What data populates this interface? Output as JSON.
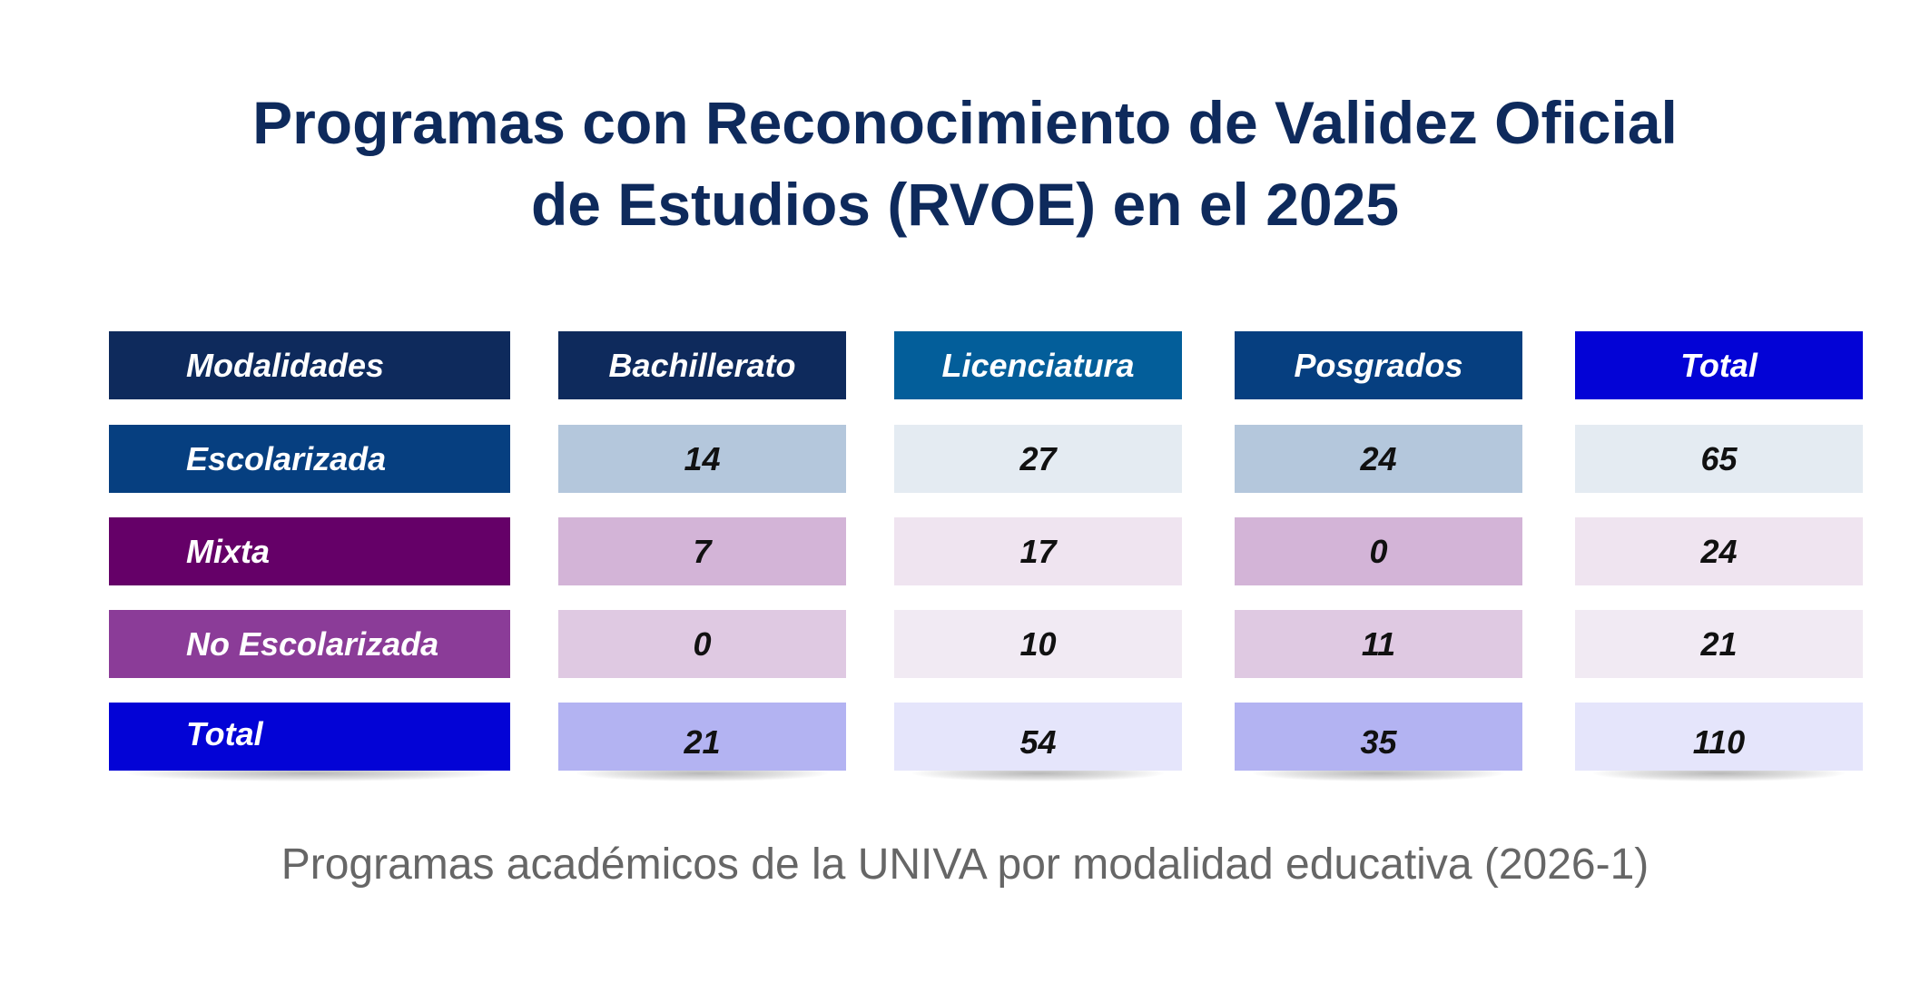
{
  "title": {
    "line1": "Programas con Reconocimiento de Validez Oficial",
    "line2": "de Estudios (RVOE) en el 2025"
  },
  "caption": "Programas académicos de la UNIVA por modalidad educativa (2026-1)",
  "colors": {
    "title": "#0e2a5c",
    "header_modalidades": "#0e2a5c",
    "header_bachillerato": "#0e2a5c",
    "header_licenciatura": "#035e9a",
    "header_posgrados": "#063f80",
    "header_total": "#0303d6",
    "row_escolarizada": "#063f80",
    "row_mixta": "#650068",
    "row_no_escolarizada": "#8b3c98",
    "row_total": "#0303d6"
  },
  "chart_data": {
    "type": "table",
    "title": "Programas con Reconocimiento de Validez Oficial de Estudios (RVOE) en el 2025",
    "columns": [
      "Modalidades",
      "Bachillerato",
      "Licenciatura",
      "Posgrados",
      "Total"
    ],
    "rows": [
      {
        "label": "Escolarizada",
        "values": [
          "14",
          "27",
          "24",
          "65"
        ]
      },
      {
        "label": "Mixta",
        "values": [
          "7",
          "17",
          "0",
          "24"
        ]
      },
      {
        "label": "No Escolarizada",
        "values": [
          "0",
          "10",
          "11",
          "21"
        ]
      },
      {
        "label": "Total",
        "values": [
          "21",
          "54",
          "35",
          "110"
        ]
      }
    ]
  }
}
